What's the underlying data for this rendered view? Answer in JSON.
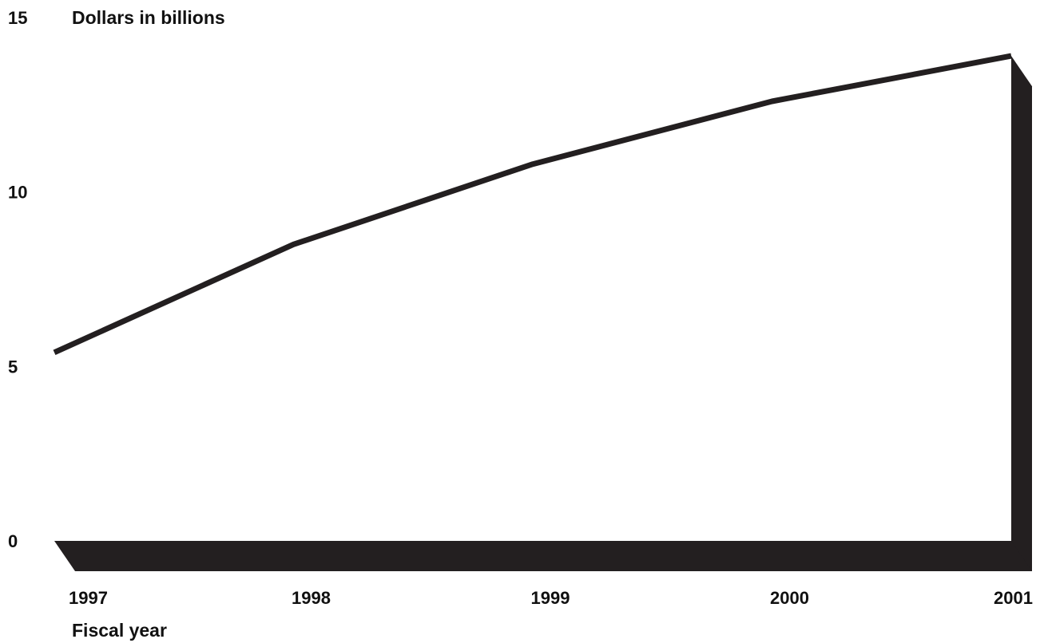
{
  "chart_data": {
    "type": "line",
    "ylabel": "Dollars in billions",
    "xlabel": "Fiscal year",
    "x": [
      "1997",
      "1998",
      "1999",
      "2000",
      "2001"
    ],
    "series": [
      {
        "values": [
          5.4,
          8.5,
          10.8,
          12.6,
          13.9
        ]
      }
    ],
    "ylim": [
      0,
      15
    ],
    "yticks": [
      "0",
      "5",
      "10",
      "15"
    ],
    "grid": false,
    "colors": {
      "line": "#231f20",
      "floor": "#231f20",
      "text": "#111111"
    }
  }
}
